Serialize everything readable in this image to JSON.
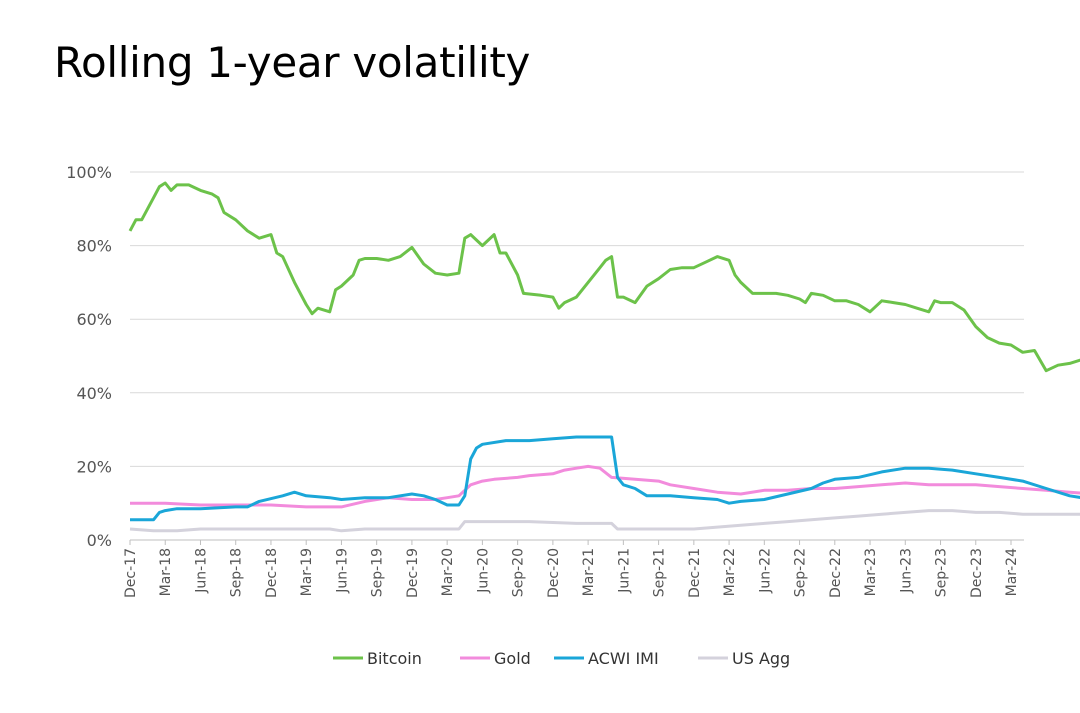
{
  "title": "Rolling 1-year volatility",
  "chart_data": {
    "type": "line",
    "title": "Rolling 1-year volatility",
    "xlabel": "",
    "ylabel": "",
    "ylim": [
      0,
      100
    ],
    "y_ticks": [
      "0%",
      "20%",
      "40%",
      "60%",
      "80%",
      "100%"
    ],
    "y_tick_values": [
      0,
      20,
      40,
      60,
      80,
      100
    ],
    "grid": true,
    "legend_position": "bottom",
    "x_ticks": [
      "Dec-17",
      "Mar-18",
      "Jun-18",
      "Sep-18",
      "Dec-18",
      "Mar-19",
      "Jun-19",
      "Sep-19",
      "Dec-19",
      "Mar-20",
      "Jun-20",
      "Sep-20",
      "Dec-20",
      "Mar-21",
      "Jun-21",
      "Sep-21",
      "Dec-21",
      "Mar-22",
      "Jun-22",
      "Sep-22",
      "Dec-22",
      "Mar-23",
      "Jun-23",
      "Sep-23",
      "Dec-23",
      "Mar-24"
    ],
    "x_months_from_dec17_note": "x values are months since Dec-2017",
    "series": [
      {
        "name": "Bitcoin",
        "color": "#6cc24a",
        "points": [
          [
            0,
            84
          ],
          [
            0.5,
            87
          ],
          [
            1,
            87
          ],
          [
            1.5,
            90
          ],
          [
            2,
            93
          ],
          [
            2.5,
            96
          ],
          [
            3,
            97
          ],
          [
            3.5,
            95
          ],
          [
            4,
            96.5
          ],
          [
            5,
            96.5
          ],
          [
            6,
            95
          ],
          [
            7,
            94
          ],
          [
            7.5,
            93
          ],
          [
            8,
            89
          ],
          [
            9,
            87
          ],
          [
            10,
            84
          ],
          [
            11,
            82
          ],
          [
            12,
            83
          ],
          [
            12.5,
            78
          ],
          [
            13,
            77
          ],
          [
            14,
            70
          ],
          [
            15,
            64
          ],
          [
            15.5,
            61.5
          ],
          [
            16,
            63
          ],
          [
            17,
            62
          ],
          [
            17.5,
            68
          ],
          [
            18,
            69
          ],
          [
            19,
            72
          ],
          [
            19.5,
            76
          ],
          [
            20,
            76.5
          ],
          [
            21,
            76.5
          ],
          [
            22,
            76
          ],
          [
            23,
            77
          ],
          [
            24,
            79.5
          ],
          [
            25,
            75
          ],
          [
            26,
            72.5
          ],
          [
            27,
            72
          ],
          [
            28,
            72.5
          ],
          [
            28.5,
            82
          ],
          [
            29,
            83
          ],
          [
            30,
            80
          ],
          [
            31,
            83
          ],
          [
            31.5,
            78
          ],
          [
            32,
            78
          ],
          [
            33,
            72
          ],
          [
            33.5,
            67
          ],
          [
            35,
            66.5
          ],
          [
            36,
            66
          ],
          [
            36.5,
            63
          ],
          [
            37,
            64.5
          ],
          [
            38,
            66
          ],
          [
            39,
            70
          ],
          [
            40,
            74
          ],
          [
            40.5,
            76
          ],
          [
            41,
            77
          ],
          [
            41.5,
            66
          ],
          [
            42,
            66
          ],
          [
            43,
            64.5
          ],
          [
            44,
            69
          ],
          [
            45,
            71
          ],
          [
            46,
            73.5
          ],
          [
            47,
            74
          ],
          [
            48,
            74
          ],
          [
            49,
            75.5
          ],
          [
            50,
            77
          ],
          [
            51,
            76
          ],
          [
            51.5,
            72
          ],
          [
            52,
            70
          ],
          [
            53,
            67
          ],
          [
            55,
            67
          ],
          [
            56,
            66.5
          ],
          [
            57,
            65.5
          ],
          [
            57.5,
            64.5
          ],
          [
            58,
            67
          ],
          [
            59,
            66.5
          ],
          [
            60,
            65
          ],
          [
            61,
            65
          ],
          [
            62,
            64
          ],
          [
            63,
            62
          ],
          [
            64,
            65
          ],
          [
            65,
            64.5
          ],
          [
            66,
            64
          ],
          [
            67,
            63
          ],
          [
            68,
            62
          ],
          [
            68.5,
            65
          ],
          [
            69,
            64.5
          ],
          [
            70,
            64.5
          ],
          [
            71,
            62.5
          ],
          [
            72,
            58
          ],
          [
            73,
            55
          ],
          [
            74,
            53.5
          ],
          [
            75,
            53
          ],
          [
            76,
            51
          ],
          [
            77,
            51.5
          ],
          [
            78,
            46
          ],
          [
            79,
            47.5
          ],
          [
            80,
            48
          ],
          [
            81,
            49
          ],
          [
            82,
            48.5
          ],
          [
            83,
            48.5
          ],
          [
            83.5,
            44.5
          ],
          [
            84,
            45
          ],
          [
            84.5,
            46
          ],
          [
            85,
            47
          ],
          [
            86,
            47
          ]
        ]
      },
      {
        "name": "Gold",
        "color": "#f28bdc",
        "points": [
          [
            0,
            10
          ],
          [
            3,
            10
          ],
          [
            6,
            9.5
          ],
          [
            9,
            9.5
          ],
          [
            12,
            9.5
          ],
          [
            15,
            9
          ],
          [
            18,
            9
          ],
          [
            20,
            10.5
          ],
          [
            22,
            11.5
          ],
          [
            24,
            11
          ],
          [
            26,
            11
          ],
          [
            27,
            11.5
          ],
          [
            28,
            12
          ],
          [
            29,
            15
          ],
          [
            30,
            16
          ],
          [
            31,
            16.5
          ],
          [
            33,
            17
          ],
          [
            34,
            17.5
          ],
          [
            36,
            18
          ],
          [
            37,
            19
          ],
          [
            38,
            19.5
          ],
          [
            39,
            20
          ],
          [
            40,
            19.5
          ],
          [
            41,
            17
          ],
          [
            43,
            16.5
          ],
          [
            45,
            16
          ],
          [
            46,
            15
          ],
          [
            48,
            14
          ],
          [
            50,
            13
          ],
          [
            52,
            12.5
          ],
          [
            54,
            13.5
          ],
          [
            56,
            13.5
          ],
          [
            58,
            14
          ],
          [
            60,
            14
          ],
          [
            62,
            14.5
          ],
          [
            64,
            15
          ],
          [
            66,
            15.5
          ],
          [
            68,
            15
          ],
          [
            70,
            15
          ],
          [
            72,
            15
          ],
          [
            74,
            14.5
          ],
          [
            76,
            14
          ],
          [
            78,
            13.5
          ],
          [
            80,
            13
          ],
          [
            82,
            12.5
          ],
          [
            84,
            12
          ],
          [
            86,
            12
          ]
        ]
      },
      {
        "name": "ACWI IMI",
        "color": "#1aa6d8",
        "points": [
          [
            0,
            5.5
          ],
          [
            2,
            5.5
          ],
          [
            2.5,
            7.5
          ],
          [
            3,
            8
          ],
          [
            4,
            8.5
          ],
          [
            6,
            8.5
          ],
          [
            9,
            9
          ],
          [
            10,
            9
          ],
          [
            11,
            10.5
          ],
          [
            13,
            12
          ],
          [
            14,
            13
          ],
          [
            15,
            12
          ],
          [
            17,
            11.5
          ],
          [
            18,
            11
          ],
          [
            20,
            11.5
          ],
          [
            22,
            11.5
          ],
          [
            24,
            12.5
          ],
          [
            25,
            12
          ],
          [
            26,
            11
          ],
          [
            27,
            9.5
          ],
          [
            28,
            9.5
          ],
          [
            28.5,
            12
          ],
          [
            29,
            22
          ],
          [
            29.5,
            25
          ],
          [
            30,
            26
          ],
          [
            32,
            27
          ],
          [
            34,
            27
          ],
          [
            36,
            27.5
          ],
          [
            38,
            28
          ],
          [
            41,
            28
          ],
          [
            41.5,
            17
          ],
          [
            42,
            15
          ],
          [
            43,
            14
          ],
          [
            44,
            12
          ],
          [
            46,
            12
          ],
          [
            48,
            11.5
          ],
          [
            50,
            11
          ],
          [
            51,
            10
          ],
          [
            52,
            10.5
          ],
          [
            54,
            11
          ],
          [
            56,
            12.5
          ],
          [
            58,
            14
          ],
          [
            59,
            15.5
          ],
          [
            60,
            16.5
          ],
          [
            62,
            17
          ],
          [
            64,
            18.5
          ],
          [
            66,
            19.5
          ],
          [
            68,
            19.5
          ],
          [
            70,
            19
          ],
          [
            72,
            18
          ],
          [
            74,
            17
          ],
          [
            76,
            16
          ],
          [
            78,
            14
          ],
          [
            80,
            12
          ],
          [
            82,
            11
          ],
          [
            84,
            10
          ],
          [
            86,
            10
          ]
        ]
      },
      {
        "name": "US Agg",
        "color": "#d4d2dc",
        "points": [
          [
            0,
            3
          ],
          [
            2,
            2.5
          ],
          [
            4,
            2.5
          ],
          [
            6,
            3
          ],
          [
            9,
            3
          ],
          [
            12,
            3
          ],
          [
            15,
            3
          ],
          [
            17,
            3
          ],
          [
            18,
            2.5
          ],
          [
            20,
            3
          ],
          [
            24,
            3
          ],
          [
            28,
            3
          ],
          [
            28.5,
            5
          ],
          [
            30,
            5
          ],
          [
            34,
            5
          ],
          [
            38,
            4.5
          ],
          [
            40,
            4.5
          ],
          [
            41,
            4.5
          ],
          [
            41.5,
            3
          ],
          [
            44,
            3
          ],
          [
            48,
            3
          ],
          [
            50,
            3.5
          ],
          [
            52,
            4
          ],
          [
            54,
            4.5
          ],
          [
            56,
            5
          ],
          [
            58,
            5.5
          ],
          [
            60,
            6
          ],
          [
            62,
            6.5
          ],
          [
            64,
            7
          ],
          [
            66,
            7.5
          ],
          [
            68,
            8
          ],
          [
            70,
            8
          ],
          [
            72,
            7.5
          ],
          [
            74,
            7.5
          ],
          [
            76,
            7
          ],
          [
            78,
            7
          ],
          [
            80,
            7
          ],
          [
            82,
            7
          ],
          [
            84,
            6.5
          ],
          [
            86,
            6.5
          ]
        ]
      }
    ]
  },
  "legend": {
    "items": [
      "Bitcoin",
      "Gold",
      "ACWI IMI",
      "US Agg"
    ]
  }
}
